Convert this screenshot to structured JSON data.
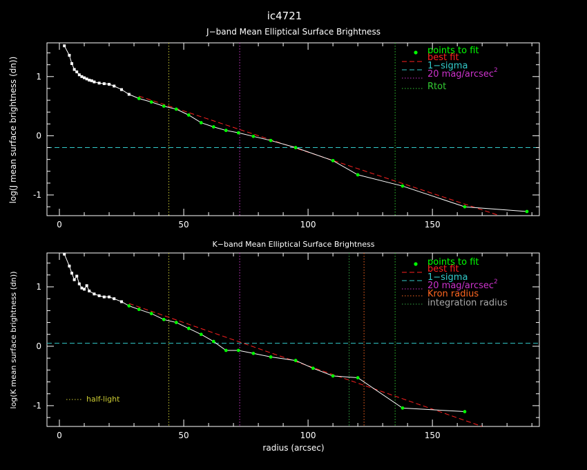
{
  "figure_title": "ic4721",
  "x_axis_label": "radius (arcsec)",
  "half_light_label": "half-light",
  "colors": {
    "background": "#000000",
    "axes": "#ffffff",
    "profile_line": "#ffffff",
    "points_to_fit": "#00ff00",
    "best_fit": "#ff2020",
    "one_sigma": "#33cccc",
    "mag20": "#cc33cc",
    "rtot": "#33cc33",
    "kron": "#ff6620",
    "integration": "#33aa44",
    "half_light": "#cccc33",
    "legend_integration_text": "#aaaaaa"
  },
  "chart_data": [
    {
      "type": "line",
      "title": "J−band Mean Elliptical Surface Brightness",
      "xlabel": "",
      "ylabel": "log(J mean surface brightness (dn))",
      "xlim": [
        -5,
        193
      ],
      "ylim": [
        -1.35,
        1.57
      ],
      "x_ticks": [
        0,
        50,
        100,
        150
      ],
      "y_ticks": [
        -1,
        0,
        1
      ],
      "legend": [
        "points to fit",
        "best fit",
        "1−sigma",
        "20 mag/arcsec",
        "Rtot"
      ],
      "legend_placement": "top-right",
      "profile": {
        "x": [
          2,
          4,
          5,
          6,
          7,
          8,
          9,
          10,
          11,
          12,
          13,
          14,
          16,
          18,
          20,
          22,
          25,
          28,
          32,
          37,
          42,
          47,
          52,
          57,
          62,
          67,
          72,
          78,
          85,
          95,
          110,
          120,
          138,
          163,
          188
        ],
        "y": [
          1.52,
          1.36,
          1.22,
          1.12,
          1.08,
          1.03,
          1.0,
          0.98,
          0.96,
          0.94,
          0.93,
          0.91,
          0.89,
          0.88,
          0.87,
          0.84,
          0.78,
          0.7,
          0.63,
          0.57,
          0.5,
          0.45,
          0.35,
          0.22,
          0.15,
          0.09,
          0.05,
          -0.01,
          -0.08,
          -0.2,
          -0.42,
          -0.66,
          -0.85,
          -1.2,
          -1.28
        ]
      },
      "points_to_fit": {
        "x": [
          32,
          37,
          42,
          47,
          52,
          57,
          62,
          67,
          72,
          78,
          85,
          95,
          110,
          120,
          138,
          163,
          188
        ],
        "y": [
          0.63,
          0.57,
          0.5,
          0.45,
          0.35,
          0.22,
          0.15,
          0.09,
          0.05,
          -0.01,
          -0.08,
          -0.2,
          -0.42,
          -0.66,
          -0.85,
          -1.2,
          -1.28
        ]
      },
      "best_fit": {
        "x": [
          32,
          177
        ],
        "y": [
          0.67,
          -1.35
        ]
      },
      "one_sigma": -0.2,
      "mag20_radius": 72.5,
      "rtot_radius": 135,
      "half_light_radius": 44
    },
    {
      "type": "line",
      "title": "K−band Mean Elliptical Surface Brightness",
      "xlabel": "radius (arcsec)",
      "ylabel": "log(K mean surface brightness (dn))",
      "xlim": [
        -5,
        193
      ],
      "ylim": [
        -1.35,
        1.57
      ],
      "x_ticks": [
        0,
        50,
        100,
        150
      ],
      "y_ticks": [
        -1,
        0,
        1
      ],
      "legend": [
        "points to fit",
        "best fit",
        "1−sigma",
        "20 mag/arcsec",
        "Kron radius",
        "integration radius"
      ],
      "legend_placement": "top-right",
      "profile": {
        "x": [
          2,
          4,
          5,
          6,
          7,
          8,
          9,
          10,
          11,
          12,
          14,
          16,
          18,
          20,
          22,
          25,
          28,
          32,
          37,
          42,
          47,
          52,
          57,
          62,
          67,
          72,
          78,
          85,
          95,
          102,
          110,
          120,
          138,
          163
        ],
        "y": [
          1.55,
          1.35,
          1.23,
          1.12,
          1.18,
          1.05,
          0.98,
          0.96,
          1.02,
          0.93,
          0.88,
          0.85,
          0.83,
          0.83,
          0.8,
          0.75,
          0.68,
          0.62,
          0.55,
          0.45,
          0.4,
          0.3,
          0.2,
          0.08,
          -0.07,
          -0.07,
          -0.12,
          -0.18,
          -0.24,
          -0.37,
          -0.5,
          -0.53,
          -1.04,
          -1.1
        ]
      },
      "points_to_fit": {
        "x": [
          28,
          32,
          37,
          42,
          47,
          52,
          57,
          62,
          67,
          72,
          78,
          85,
          95,
          102,
          110,
          120,
          138,
          163
        ],
        "y": [
          0.68,
          0.62,
          0.55,
          0.45,
          0.4,
          0.3,
          0.2,
          0.08,
          -0.07,
          -0.07,
          -0.12,
          -0.18,
          -0.24,
          -0.37,
          -0.5,
          -0.53,
          -1.04,
          -1.1
        ]
      },
      "best_fit": {
        "x": [
          28,
          170
        ],
        "y": [
          0.72,
          -1.35
        ]
      },
      "one_sigma": 0.05,
      "mag20_radius": 72.5,
      "kron_radius": 122.5,
      "integration_radius": 116.5,
      "rtot_radius": 135,
      "half_light_radius": 44
    }
  ]
}
